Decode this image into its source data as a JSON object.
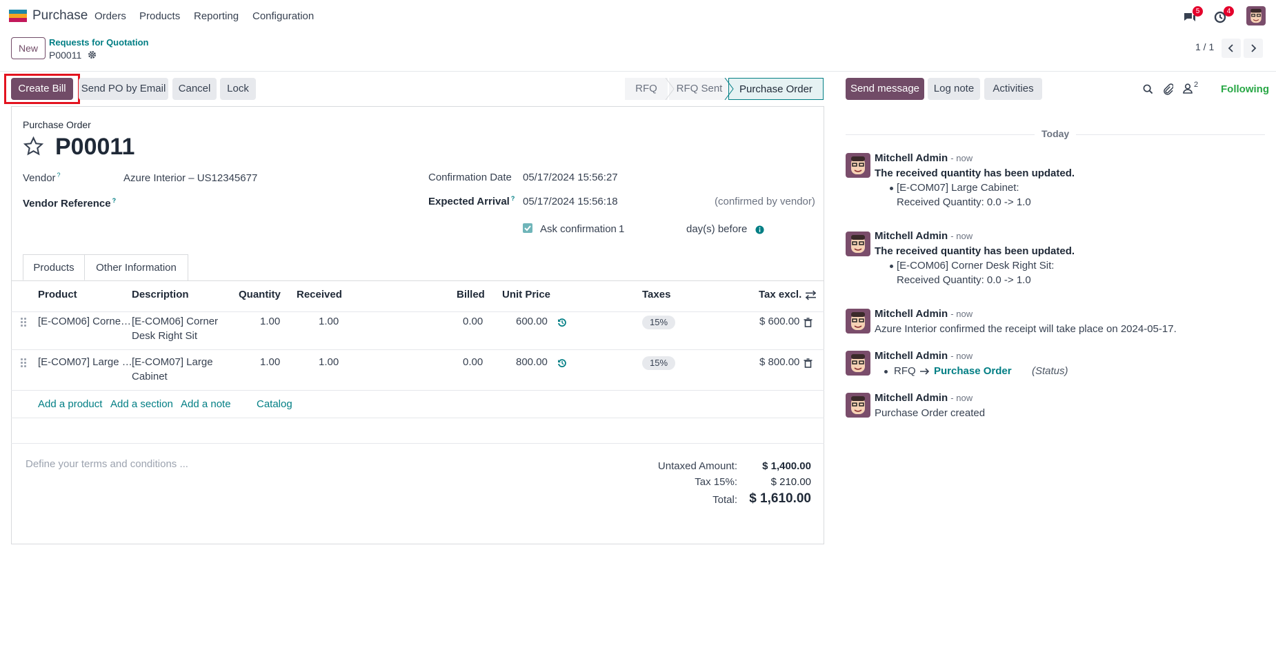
{
  "navbar": {
    "app_name": "Purchase",
    "menu": [
      "Orders",
      "Products",
      "Reporting",
      "Configuration"
    ],
    "messages_count": "5",
    "activities_count": "4"
  },
  "control_panel": {
    "new_label": "New",
    "breadcrumb_parent": "Requests for Quotation",
    "breadcrumb_current": "P00011",
    "pager": "1 / 1"
  },
  "actions": {
    "create_bill": "Create Bill",
    "send_po": "Send PO by Email",
    "cancel": "Cancel",
    "lock": "Lock"
  },
  "statusbar": [
    "RFQ",
    "RFQ Sent",
    "Purchase Order"
  ],
  "form": {
    "doc_type": "Purchase Order",
    "name": "P00011",
    "vendor_label": "Vendor",
    "vendor_value": "Azure Interior – US12345677",
    "vendor_ref_label": "Vendor Reference",
    "confirmation_date_label": "Confirmation Date",
    "confirmation_date_value": "05/17/2024 15:56:27",
    "expected_arrival_label": "Expected Arrival",
    "expected_arrival_value": "05/17/2024 15:56:18",
    "confirmed_note": "(confirmed by vendor)",
    "ask_confirmation_label": "Ask confirmation",
    "ask_confirmation_days": "1",
    "days_before": "day(s) before"
  },
  "tabs": [
    "Products",
    "Other Information"
  ],
  "table": {
    "headers": {
      "product": "Product",
      "description": "Description",
      "quantity": "Quantity",
      "received": "Received",
      "billed": "Billed",
      "unit_price": "Unit Price",
      "taxes": "Taxes",
      "tax_excl": "Tax excl."
    },
    "rows": [
      {
        "product": "[E-COM06] Corne…",
        "desc_line1": "[E-COM06] Corner",
        "desc_line2": "Desk Right Sit",
        "quantity": "1.00",
        "received": "1.00",
        "billed": "0.00",
        "unit_price": "600.00",
        "tax": "15%",
        "subtotal": "$ 600.00"
      },
      {
        "product": "[E-COM07] Large …",
        "desc_line1": "[E-COM07] Large",
        "desc_line2": "Cabinet",
        "quantity": "1.00",
        "received": "1.00",
        "billed": "0.00",
        "unit_price": "800.00",
        "tax": "15%",
        "subtotal": "$ 800.00"
      }
    ],
    "add_product": "Add a product",
    "add_section": "Add a section",
    "add_note": "Add a note",
    "catalog": "Catalog"
  },
  "terms_placeholder": "Define your terms and conditions ...",
  "totals": {
    "untaxed_label": "Untaxed Amount:",
    "untaxed_value": "$ 1,400.00",
    "tax_label": "Tax 15%:",
    "tax_value": "$ 210.00",
    "total_label": "Total:",
    "total_value": "$ 1,610.00"
  },
  "chatter": {
    "send_message": "Send message",
    "log_note": "Log note",
    "activities": "Activities",
    "followers_count": "2",
    "following": "Following",
    "date_separator": "Today",
    "messages": [
      {
        "author": "Mitchell Admin",
        "time": "- now",
        "title": "The received quantity has been updated.",
        "line1": "[E-COM07] Large Cabinet:",
        "line2": "Received Quantity: 0.0 -> 1.0"
      },
      {
        "author": "Mitchell Admin",
        "time": "- now",
        "title": "The received quantity has been updated.",
        "line1": "[E-COM06] Corner Desk Right Sit:",
        "line2": "Received Quantity: 0.0 -> 1.0"
      },
      {
        "author": "Mitchell Admin",
        "time": "- now",
        "body": "Azure Interior confirmed the receipt will take place on 2024-05-17."
      },
      {
        "author": "Mitchell Admin",
        "time": "- now",
        "from": "RFQ",
        "to": "Purchase Order",
        "field": "(Status)"
      },
      {
        "author": "Mitchell Admin",
        "time": "- now",
        "body": "Purchase Order created"
      }
    ]
  },
  "colors": {
    "brand": "#714b67",
    "teal": "#017e84",
    "following": "#28a745",
    "badge": "#e4002b"
  }
}
